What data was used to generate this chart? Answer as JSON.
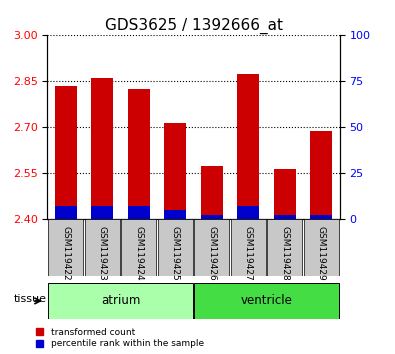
{
  "title": "GDS3625 / 1392666_at",
  "samples": [
    "GSM119422",
    "GSM119423",
    "GSM119424",
    "GSM119425",
    "GSM119426",
    "GSM119427",
    "GSM119428",
    "GSM119429"
  ],
  "red_top": [
    2.835,
    2.86,
    2.825,
    2.715,
    2.575,
    2.875,
    2.565,
    2.69
  ],
  "blue_top": [
    2.445,
    2.445,
    2.443,
    2.43,
    2.413,
    2.445,
    2.413,
    2.415
  ],
  "bar_bottom": 2.4,
  "ylim": [
    2.4,
    3.0
  ],
  "yticks_left": [
    2.4,
    2.55,
    2.7,
    2.85,
    3.0
  ],
  "yticks_right": [
    0,
    25,
    50,
    75,
    100
  ],
  "right_ylim": [
    0,
    100
  ],
  "atrium_label": "atrium",
  "ventricle_label": "ventricle",
  "tissue_label": "tissue",
  "legend_red": "transformed count",
  "legend_blue": "percentile rank within the sample",
  "red_color": "#cc0000",
  "blue_color": "#0000cc",
  "atrium_bg": "#aaffaa",
  "ventricle_bg": "#44dd44",
  "xlabel_bg": "#c8c8c8",
  "title_fontsize": 11,
  "bar_width": 0.6
}
